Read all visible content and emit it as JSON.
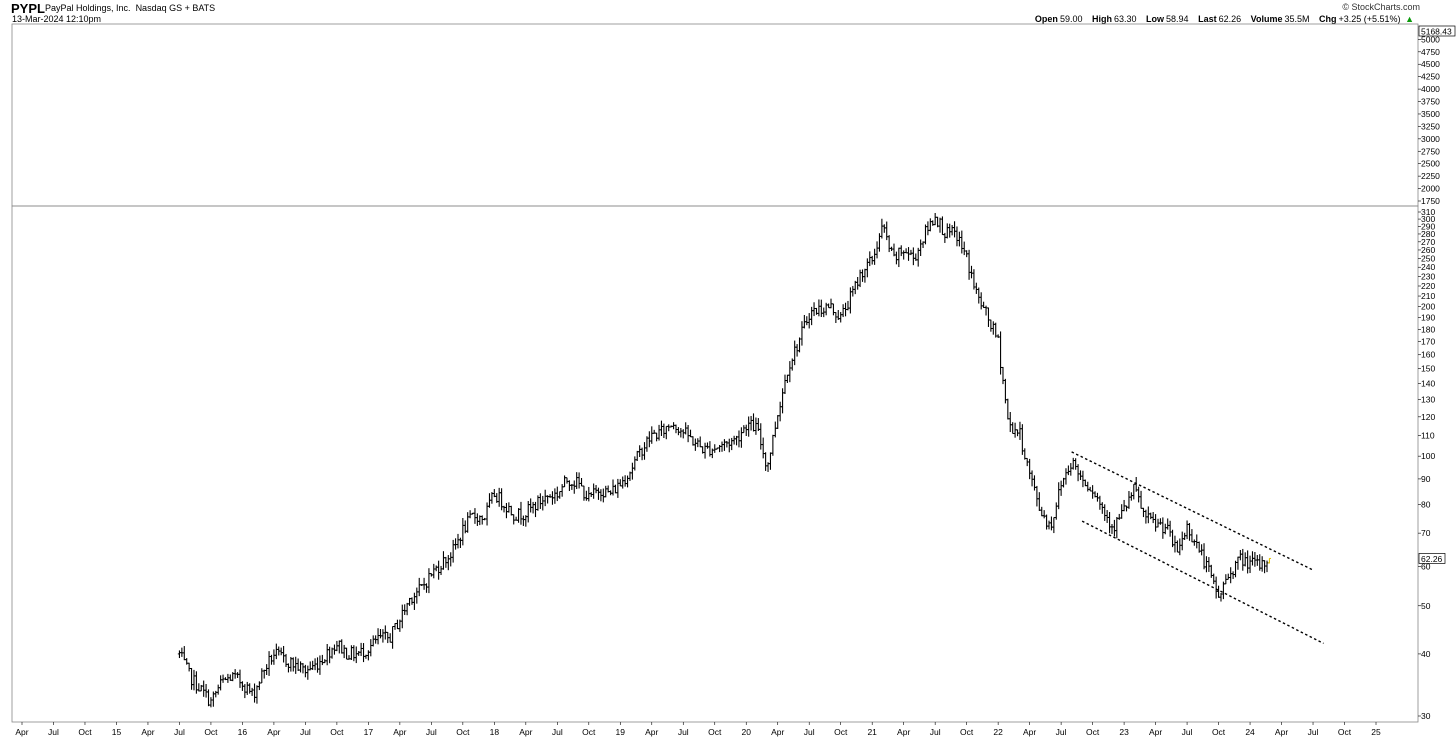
{
  "header": {
    "symbol": "PYPL",
    "name": "PayPal Holdings, Inc.",
    "exchange": "Nasdaq GS + BATS",
    "datetime": "13-Mar-2024 12:10pm",
    "credit": "© StockCharts.com",
    "quote": {
      "open_label": "Open",
      "open": "59.00",
      "high_label": "High",
      "high": "63.30",
      "low_label": "Low",
      "low": "58.94",
      "last_label": "Last",
      "last": "62.26",
      "volume_label": "Volume",
      "volume": "35.5M",
      "chg_label": "Chg",
      "chg": "+3.25 (+5.51%)",
      "chg_arrow": "▲"
    }
  },
  "colors": {
    "price": "#000000",
    "channel": "#000000",
    "last_bar": "#e0c000",
    "panel_border": "#888888"
  },
  "chart_data": {
    "type": "ohlc",
    "scale": "log",
    "grid": false,
    "upper_panel": {
      "y_ticks": [
        "5000",
        "4750",
        "4500",
        "4250",
        "4000",
        "3750",
        "3500",
        "3250",
        "3000",
        "2750",
        "2500",
        "2250",
        "2000",
        "1750"
      ],
      "flag_value": "5168.43"
    },
    "main_panel": {
      "y_ticks": [
        "310",
        "300",
        "290",
        "280",
        "270",
        "260",
        "250",
        "240",
        "230",
        "220",
        "210",
        "200",
        "190",
        "180",
        "170",
        "160",
        "150",
        "140",
        "130",
        "120",
        "110",
        "100",
        "90",
        "80",
        "70",
        "60",
        "50",
        "40",
        "30"
      ],
      "ylim": [
        30,
        310
      ],
      "last_label": "62.26"
    },
    "x_ticks": [
      "Apr",
      "Jul",
      "Oct",
      "15",
      "Apr",
      "Jul",
      "Oct",
      "16",
      "Apr",
      "Jul",
      "Oct",
      "17",
      "Apr",
      "Jul",
      "Oct",
      "18",
      "Apr",
      "Jul",
      "Oct",
      "19",
      "Apr",
      "Jul",
      "Oct",
      "20",
      "Apr",
      "Jul",
      "Oct",
      "21",
      "Apr",
      "Jul",
      "Oct",
      "22",
      "Apr",
      "Jul",
      "Oct",
      "23",
      "Apr",
      "Jul",
      "Oct",
      "24",
      "Apr",
      "Jul",
      "Oct",
      "25"
    ],
    "xlim": [
      "2014-04",
      "2025-03"
    ],
    "series": [
      {
        "values": [
          [
            "2015-07",
            40
          ],
          [
            "2015-08",
            36
          ],
          [
            "2015-09",
            34
          ],
          [
            "2015-10",
            32
          ],
          [
            "2015-11",
            35
          ],
          [
            "2015-12",
            36
          ],
          [
            "2016-01",
            35
          ],
          [
            "2016-02",
            33
          ],
          [
            "2016-03",
            37
          ],
          [
            "2016-04",
            40
          ],
          [
            "2016-05",
            39
          ],
          [
            "2016-06",
            38
          ],
          [
            "2016-07",
            37
          ],
          [
            "2016-08",
            38
          ],
          [
            "2016-09",
            40
          ],
          [
            "2016-10",
            42
          ],
          [
            "2016-11",
            40
          ],
          [
            "2016-12",
            40
          ],
          [
            "2017-01",
            41
          ],
          [
            "2017-02",
            43
          ],
          [
            "2017-03",
            43
          ],
          [
            "2017-04",
            47
          ],
          [
            "2017-05",
            52
          ],
          [
            "2017-06",
            54
          ],
          [
            "2017-07",
            58
          ],
          [
            "2017-08",
            61
          ],
          [
            "2017-09",
            64
          ],
          [
            "2017-10",
            71
          ],
          [
            "2017-11",
            76
          ],
          [
            "2017-12",
            75
          ],
          [
            "2018-01",
            84
          ],
          [
            "2018-02",
            80
          ],
          [
            "2018-03",
            76
          ],
          [
            "2018-04",
            77
          ],
          [
            "2018-05",
            80
          ],
          [
            "2018-06",
            83
          ],
          [
            "2018-07",
            84
          ],
          [
            "2018-08",
            90
          ],
          [
            "2018-09",
            88
          ],
          [
            "2018-10",
            82
          ],
          [
            "2018-11",
            86
          ],
          [
            "2018-12",
            84
          ],
          [
            "2019-01",
            88
          ],
          [
            "2019-02",
            94
          ],
          [
            "2019-03",
            103
          ],
          [
            "2019-04",
            110
          ],
          [
            "2019-05",
            112
          ],
          [
            "2019-06",
            117
          ],
          [
            "2019-07",
            112
          ],
          [
            "2019-08",
            107
          ],
          [
            "2019-09",
            103
          ],
          [
            "2019-10",
            104
          ],
          [
            "2019-11",
            106
          ],
          [
            "2019-12",
            108
          ],
          [
            "2020-01",
            116
          ],
          [
            "2020-02",
            114
          ],
          [
            "2020-03",
            95
          ],
          [
            "2020-04",
            122
          ],
          [
            "2020-05",
            152
          ],
          [
            "2020-06",
            170
          ],
          [
            "2020-07",
            194
          ],
          [
            "2020-08",
            198
          ],
          [
            "2020-09",
            200
          ],
          [
            "2020-10",
            190
          ],
          [
            "2020-11",
            210
          ],
          [
            "2020-12",
            235
          ],
          [
            "2021-01",
            248
          ],
          [
            "2021-02",
            290
          ],
          [
            "2021-03",
            248
          ],
          [
            "2021-04",
            260
          ],
          [
            "2021-05",
            250
          ],
          [
            "2021-06",
            280
          ],
          [
            "2021-07",
            305
          ],
          [
            "2021-08",
            280
          ],
          [
            "2021-09",
            280
          ],
          [
            "2021-10",
            250
          ],
          [
            "2021-11",
            210
          ],
          [
            "2021-12",
            190
          ],
          [
            "2022-01",
            170
          ],
          [
            "2022-02",
            115
          ],
          [
            "2022-03",
            112
          ],
          [
            "2022-04",
            92
          ],
          [
            "2022-05",
            78
          ],
          [
            "2022-06",
            72
          ],
          [
            "2022-07",
            88
          ],
          [
            "2022-08",
            98
          ],
          [
            "2022-09",
            90
          ],
          [
            "2022-10",
            86
          ],
          [
            "2022-11",
            78
          ],
          [
            "2022-12",
            72
          ],
          [
            "2023-01",
            78
          ],
          [
            "2023-02",
            86
          ],
          [
            "2023-03",
            75
          ],
          [
            "2023-04",
            73
          ],
          [
            "2023-05",
            72
          ],
          [
            "2023-06",
            64
          ],
          [
            "2023-07",
            72
          ],
          [
            "2023-08",
            66
          ],
          [
            "2023-09",
            59
          ],
          [
            "2023-10",
            52
          ],
          [
            "2023-11",
            58
          ],
          [
            "2023-12",
            62
          ],
          [
            "2024-01",
            61
          ],
          [
            "2024-02",
            60
          ],
          [
            "2024-03",
            62.26
          ]
        ]
      }
    ],
    "annotations": [
      {
        "type": "trendline",
        "style": "dashed",
        "from": [
          "2022-08",
          102
        ],
        "to": [
          "2024-07",
          59
        ]
      },
      {
        "type": "trendline",
        "style": "dashed",
        "from": [
          "2022-09",
          74
        ],
        "to": [
          "2024-08",
          42
        ]
      }
    ]
  }
}
